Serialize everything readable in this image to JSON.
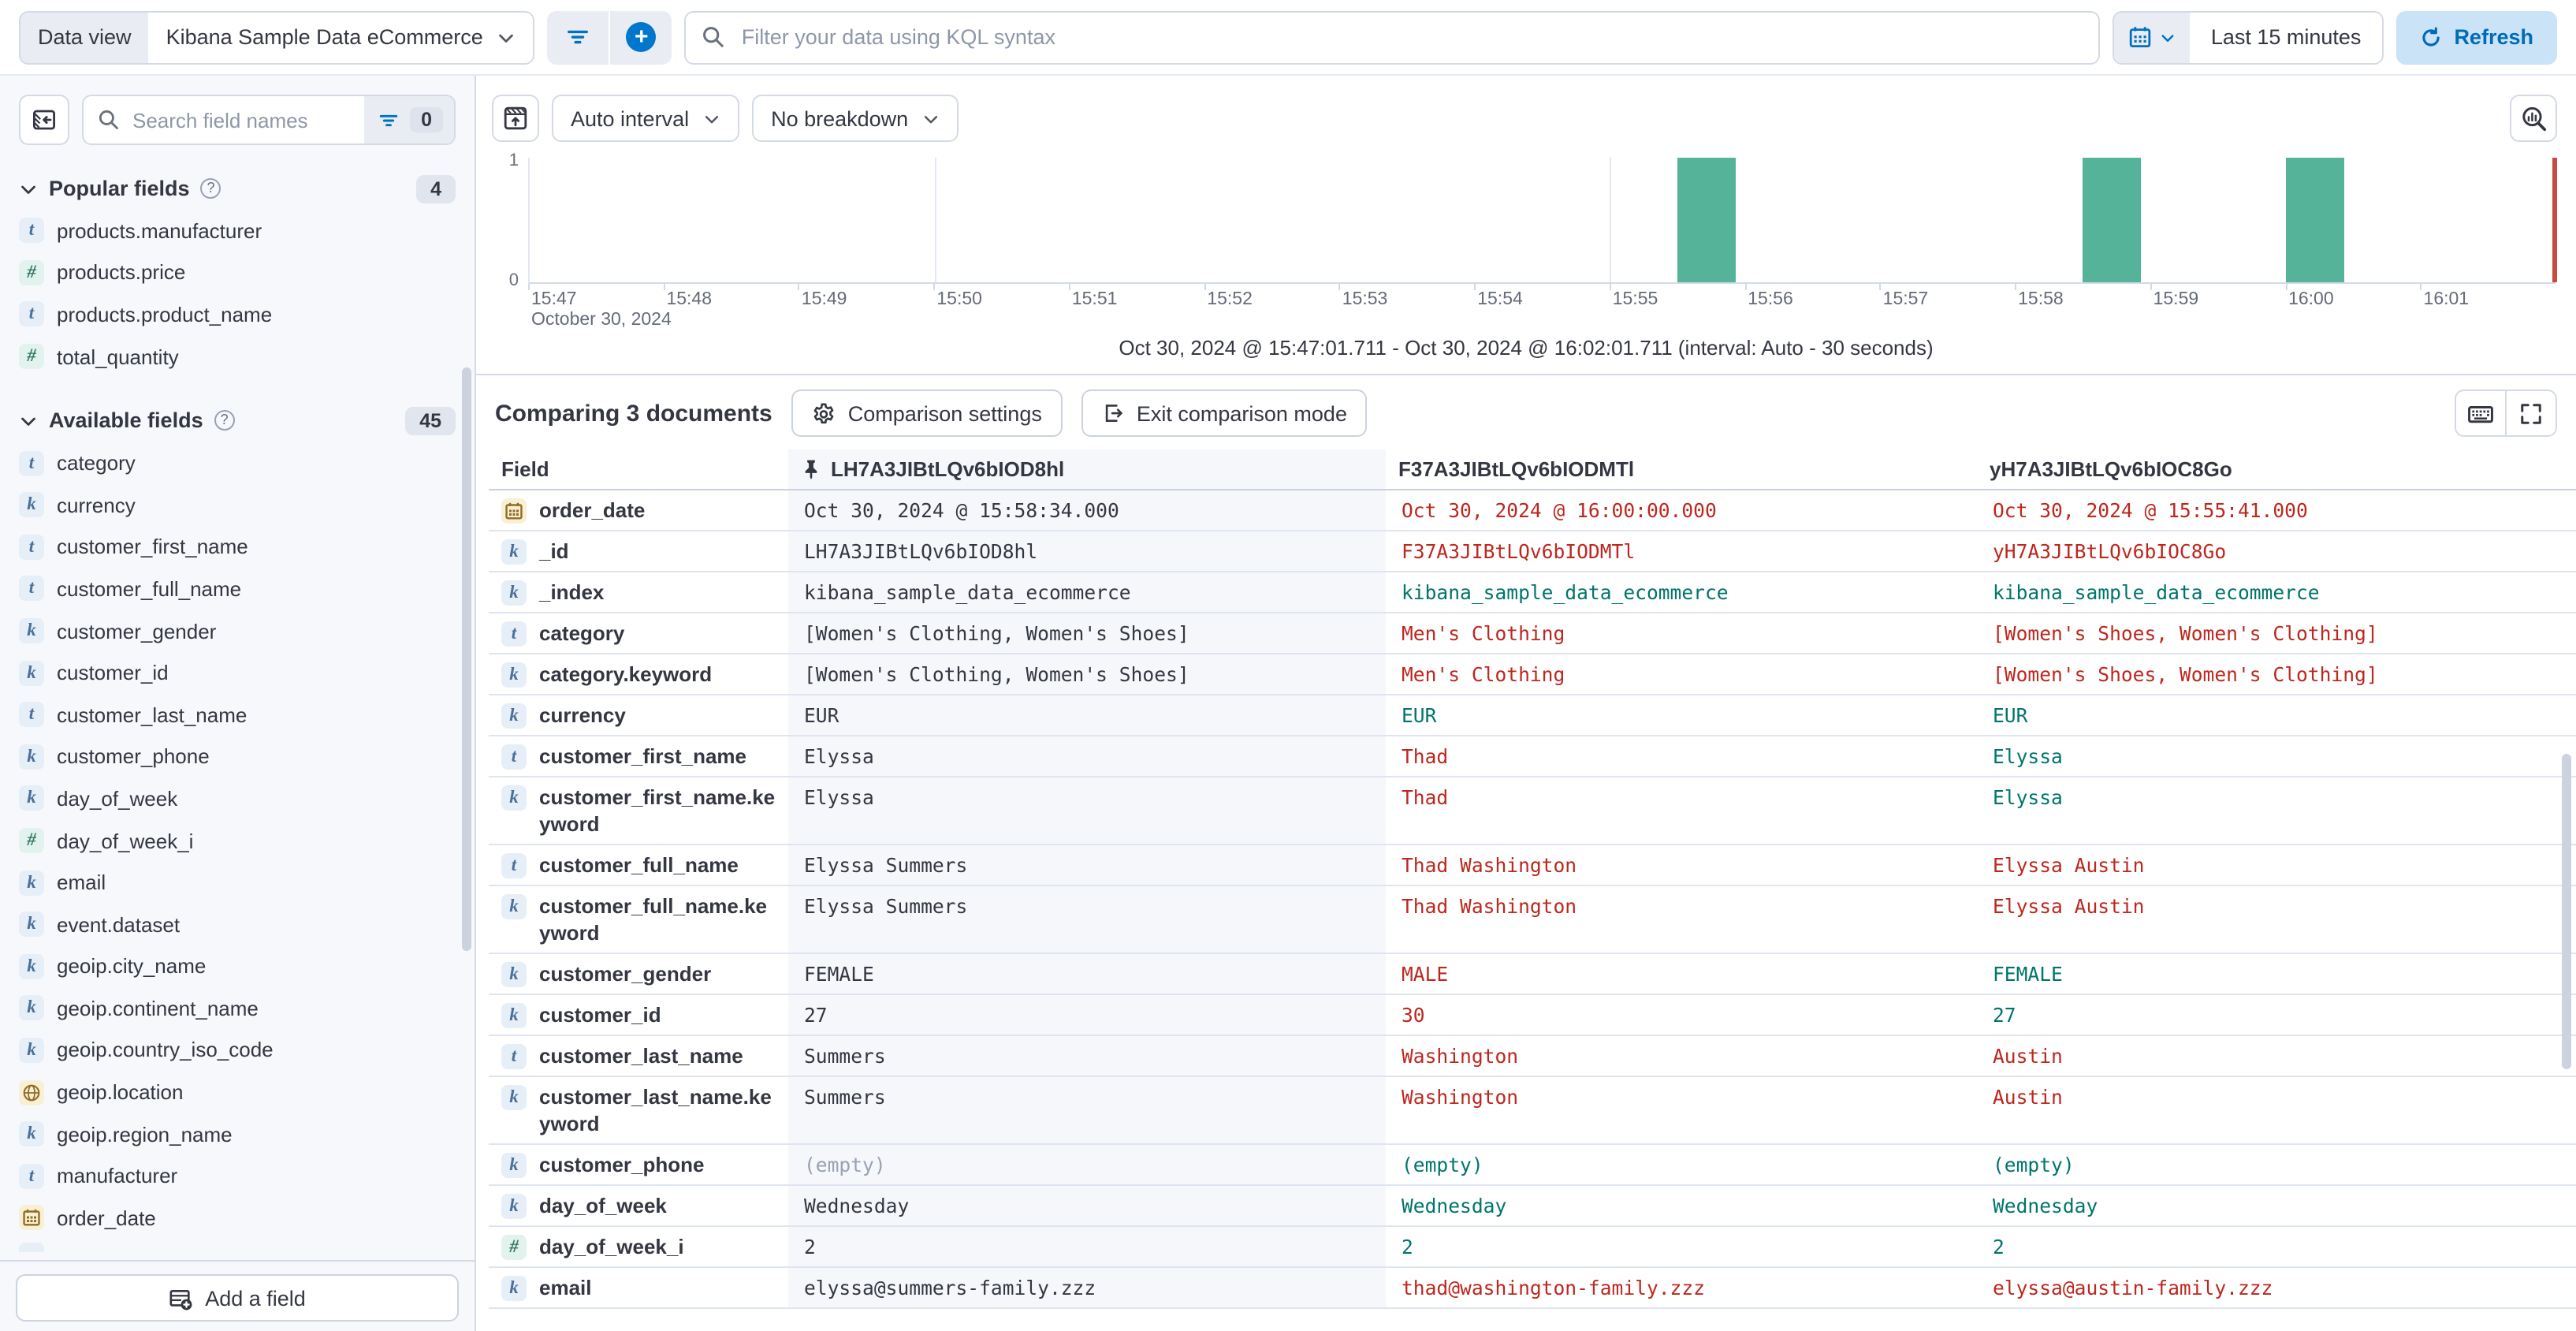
{
  "topbar": {
    "dataview_label": "Data view",
    "dataview_value": "Kibana Sample Data eCommerce",
    "kql_placeholder": "Filter your data using KQL syntax",
    "time_range": "Last 15 minutes",
    "refresh_label": "Refresh"
  },
  "sidebar": {
    "search_placeholder": "Search field names",
    "filter_count": "0",
    "add_field_label": "Add a field",
    "sections": [
      {
        "title": "Popular fields",
        "badge": "4",
        "items": [
          {
            "type": "text",
            "name": "products.manufacturer"
          },
          {
            "type": "number",
            "name": "products.price"
          },
          {
            "type": "text",
            "name": "products.product_name"
          },
          {
            "type": "number",
            "name": "total_quantity"
          }
        ]
      },
      {
        "title": "Available fields",
        "badge": "45",
        "items": [
          {
            "type": "text",
            "name": "category"
          },
          {
            "type": "keyword",
            "name": "currency"
          },
          {
            "type": "text",
            "name": "customer_first_name"
          },
          {
            "type": "text",
            "name": "customer_full_name"
          },
          {
            "type": "keyword",
            "name": "customer_gender"
          },
          {
            "type": "keyword",
            "name": "customer_id"
          },
          {
            "type": "text",
            "name": "customer_last_name"
          },
          {
            "type": "keyword",
            "name": "customer_phone"
          },
          {
            "type": "keyword",
            "name": "day_of_week"
          },
          {
            "type": "number",
            "name": "day_of_week_i"
          },
          {
            "type": "keyword",
            "name": "email"
          },
          {
            "type": "keyword",
            "name": "event.dataset"
          },
          {
            "type": "keyword",
            "name": "geoip.city_name"
          },
          {
            "type": "keyword",
            "name": "geoip.continent_name"
          },
          {
            "type": "keyword",
            "name": "geoip.country_iso_code"
          },
          {
            "type": "geo",
            "name": "geoip.location"
          },
          {
            "type": "keyword",
            "name": "geoip.region_name"
          },
          {
            "type": "text",
            "name": "manufacturer"
          },
          {
            "type": "date",
            "name": "order_date"
          }
        ]
      }
    ]
  },
  "chart": {
    "interval_label": "Auto interval",
    "breakdown_label": "No breakdown"
  },
  "chart_data": {
    "type": "bar",
    "title": "",
    "x_ticks": [
      "15:47",
      "15:48",
      "15:49",
      "15:50",
      "15:51",
      "15:52",
      "15:53",
      "15:54",
      "15:55",
      "15:56",
      "15:57",
      "15:58",
      "15:59",
      "16:00",
      "16:01"
    ],
    "x_date_label": "October 30, 2024",
    "x_range": [
      "15:47:00",
      "16:02:00"
    ],
    "gridline_ticks": [
      "15:50",
      "15:55",
      "16:00"
    ],
    "y_ticks": [
      "0",
      "1"
    ],
    "ylim": [
      0,
      1
    ],
    "buckets": [
      {
        "time": "15:55:30",
        "count": 1
      },
      {
        "time": "15:58:30",
        "count": 1
      },
      {
        "time": "16:00:00",
        "count": 1
      }
    ],
    "bucket_seconds": 30,
    "bar_color": "#54B399",
    "end_marker_color": "#C84A42",
    "range_caption": "Oct 30, 2024 @ 15:47:01.711 - Oct 30, 2024 @ 16:02:01.711 (interval: Auto - 30 seconds)"
  },
  "comparison": {
    "title": "Comparing 3 documents",
    "settings_label": "Comparison settings",
    "exit_label": "Exit comparison mode"
  },
  "table": {
    "field_header": "Field",
    "doc_headers": [
      "LH7A3JIBtLQv6bIOD8hl",
      "F37A3JIBtLQv6bIODMTl",
      "yH7A3JIBtLQv6bIOC8Go"
    ],
    "status_colors": {
      "diff": "#BD271E",
      "match": "#00756B",
      "base": "#343741",
      "empty": "#98A2B3"
    },
    "rows": [
      {
        "icon": "date",
        "name": "order_date",
        "cells": [
          {
            "text": "Oct 30, 2024 @ 15:58:34.000",
            "status": "base"
          },
          {
            "text": "Oct 30, 2024 @ 16:00:00.000",
            "status": "diff"
          },
          {
            "text": "Oct 30, 2024 @ 15:55:41.000",
            "status": "diff"
          }
        ]
      },
      {
        "icon": "keyword",
        "name": "_id",
        "cells": [
          {
            "text": "LH7A3JIBtLQv6bIOD8hl",
            "status": "base"
          },
          {
            "text": "F37A3JIBtLQv6bIODMTl",
            "status": "diff"
          },
          {
            "text": "yH7A3JIBtLQv6bIOC8Go",
            "status": "diff"
          }
        ]
      },
      {
        "icon": "keyword",
        "name": "_index",
        "cells": [
          {
            "text": "kibana_sample_data_ecommerce",
            "status": "base"
          },
          {
            "text": "kibana_sample_data_ecommerce",
            "status": "match"
          },
          {
            "text": "kibana_sample_data_ecommerce",
            "status": "match"
          }
        ]
      },
      {
        "icon": "text",
        "name": "category",
        "cells": [
          {
            "text": "[Women's Clothing, Women's Shoes]",
            "status": "base"
          },
          {
            "text": "Men's Clothing",
            "status": "diff"
          },
          {
            "text": "[Women's Shoes, Women's Clothing]",
            "status": "diff"
          }
        ]
      },
      {
        "icon": "keyword",
        "name": "category.keyword",
        "cells": [
          {
            "text": "[Women's Clothing, Women's Shoes]",
            "status": "base"
          },
          {
            "text": "Men's Clothing",
            "status": "diff"
          },
          {
            "text": "[Women's Shoes, Women's Clothing]",
            "status": "diff"
          }
        ]
      },
      {
        "icon": "keyword",
        "name": "currency",
        "cells": [
          {
            "text": "EUR",
            "status": "base"
          },
          {
            "text": "EUR",
            "status": "match"
          },
          {
            "text": "EUR",
            "status": "match"
          }
        ]
      },
      {
        "icon": "text",
        "name": "customer_first_name",
        "cells": [
          {
            "text": "Elyssa",
            "status": "base"
          },
          {
            "text": "Thad",
            "status": "diff"
          },
          {
            "text": "Elyssa",
            "status": "match"
          }
        ]
      },
      {
        "icon": "keyword",
        "name": "customer_first_name.keyword",
        "cells": [
          {
            "text": "Elyssa",
            "status": "base"
          },
          {
            "text": "Thad",
            "status": "diff"
          },
          {
            "text": "Elyssa",
            "status": "match"
          }
        ]
      },
      {
        "icon": "text",
        "name": "customer_full_name",
        "cells": [
          {
            "text": "Elyssa Summers",
            "status": "base"
          },
          {
            "text": "Thad Washington",
            "status": "diff"
          },
          {
            "text": "Elyssa Austin",
            "status": "diff"
          }
        ]
      },
      {
        "icon": "keyword",
        "name": "customer_full_name.keyword",
        "cells": [
          {
            "text": "Elyssa Summers",
            "status": "base"
          },
          {
            "text": "Thad Washington",
            "status": "diff"
          },
          {
            "text": "Elyssa Austin",
            "status": "diff"
          }
        ]
      },
      {
        "icon": "keyword",
        "name": "customer_gender",
        "cells": [
          {
            "text": "FEMALE",
            "status": "base"
          },
          {
            "text": "MALE",
            "status": "diff"
          },
          {
            "text": "FEMALE",
            "status": "match"
          }
        ]
      },
      {
        "icon": "keyword",
        "name": "customer_id",
        "cells": [
          {
            "text": "27",
            "status": "base"
          },
          {
            "text": "30",
            "status": "diff"
          },
          {
            "text": "27",
            "status": "match"
          }
        ]
      },
      {
        "icon": "text",
        "name": "customer_last_name",
        "cells": [
          {
            "text": "Summers",
            "status": "base"
          },
          {
            "text": "Washington",
            "status": "diff"
          },
          {
            "text": "Austin",
            "status": "diff"
          }
        ]
      },
      {
        "icon": "keyword",
        "name": "customer_last_name.keyword",
        "cells": [
          {
            "text": "Summers",
            "status": "base"
          },
          {
            "text": "Washington",
            "status": "diff"
          },
          {
            "text": "Austin",
            "status": "diff"
          }
        ]
      },
      {
        "icon": "keyword",
        "name": "customer_phone",
        "cells": [
          {
            "text": "(empty)",
            "status": "empty"
          },
          {
            "text": "(empty)",
            "status": "match"
          },
          {
            "text": "(empty)",
            "status": "match"
          }
        ]
      },
      {
        "icon": "keyword",
        "name": "day_of_week",
        "cells": [
          {
            "text": "Wednesday",
            "status": "base"
          },
          {
            "text": "Wednesday",
            "status": "match"
          },
          {
            "text": "Wednesday",
            "status": "match"
          }
        ]
      },
      {
        "icon": "number",
        "name": "day_of_week_i",
        "cells": [
          {
            "text": "2",
            "status": "base"
          },
          {
            "text": "2",
            "status": "match"
          },
          {
            "text": "2",
            "status": "match"
          }
        ]
      },
      {
        "icon": "keyword",
        "name": "email",
        "cells": [
          {
            "text": "elyssa@summers-family.zzz",
            "status": "base"
          },
          {
            "text": "thad@washington-family.zzz",
            "status": "diff"
          },
          {
            "text": "elyssa@austin-family.zzz",
            "status": "diff"
          }
        ]
      }
    ]
  }
}
